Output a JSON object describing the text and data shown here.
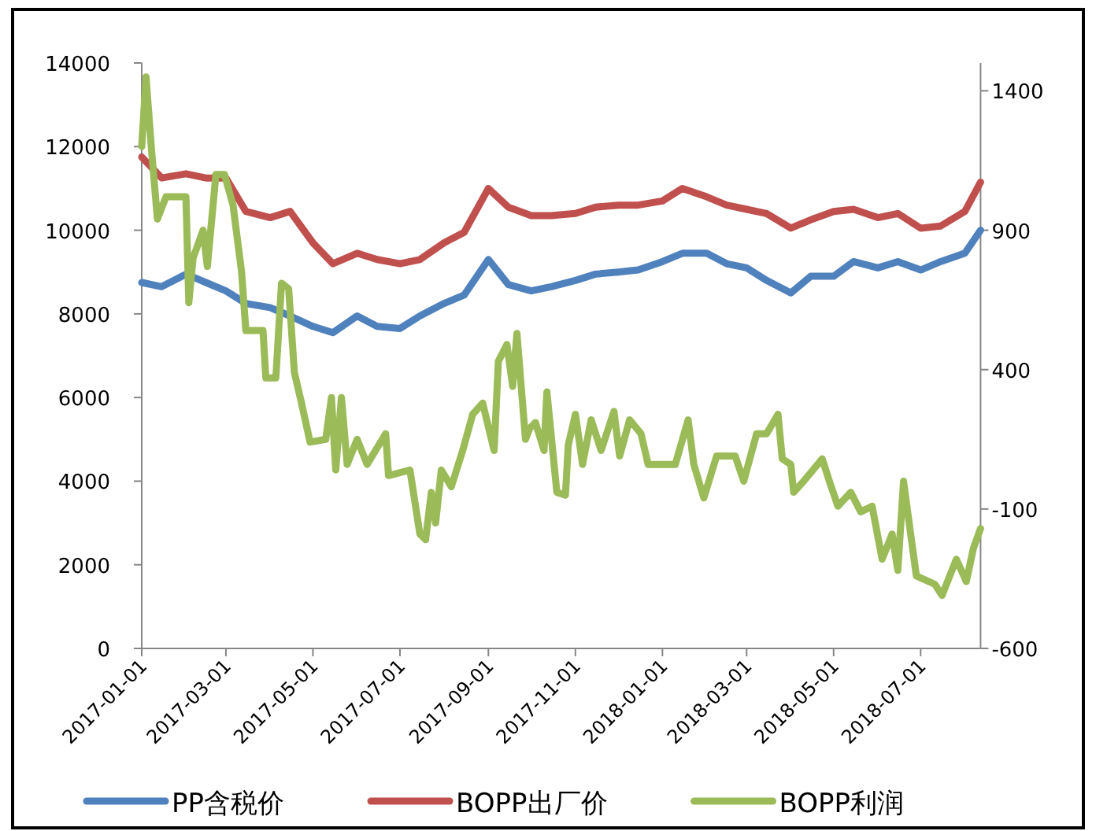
{
  "chart_data": {
    "type": "line",
    "xlim": [
      "2017-01-01",
      "2018-08-12"
    ],
    "xticks": [
      "2017-01-01",
      "2017-03-01",
      "2017-05-01",
      "2017-07-01",
      "2017-09-01",
      "2017-11-01",
      "2018-01-01",
      "2018-03-01",
      "2018-05-01",
      "2018-07-01"
    ],
    "ylim": [
      0,
      14000
    ],
    "yticks": [
      0,
      2000,
      4000,
      6000,
      8000,
      10000,
      12000,
      14000
    ],
    "y2lim": [
      -600,
      1500
    ],
    "y2ticks": [
      -600,
      -100,
      400,
      900,
      1400
    ],
    "grid": false,
    "legend": "bottom",
    "marker": "none",
    "line_style": "solid",
    "series": [
      {
        "name": "PP含税价",
        "color": "#4f81bd",
        "x": [
          "2017-01-01",
          "2017-01-15",
          "2017-02-01",
          "2017-02-15",
          "2017-03-01",
          "2017-03-15",
          "2017-04-01",
          "2017-04-15",
          "2017-05-01",
          "2017-05-15",
          "2017-06-01",
          "2017-06-15",
          "2017-07-01",
          "2017-07-15",
          "2017-08-01",
          "2017-08-15",
          "2017-09-01",
          "2017-09-15",
          "2017-10-01",
          "2017-10-15",
          "2017-11-01",
          "2017-11-15",
          "2017-12-01",
          "2017-12-15",
          "2018-01-01",
          "2018-01-15",
          "2018-02-01",
          "2018-02-15",
          "2018-03-01",
          "2018-03-15",
          "2018-04-01",
          "2018-04-15",
          "2018-05-01",
          "2018-05-15",
          "2018-06-01",
          "2018-06-15",
          "2018-07-01",
          "2018-07-15",
          "2018-08-01",
          "2018-08-12"
        ],
        "values": [
          8750,
          8650,
          8950,
          8750,
          8550,
          8250,
          8150,
          7950,
          7700,
          7550,
          7950,
          7700,
          7650,
          7950,
          8250,
          8450,
          9300,
          8700,
          8550,
          8650,
          8800,
          8950,
          9000,
          9050,
          9250,
          9450,
          9450,
          9200,
          9100,
          8800,
          8500,
          8900,
          8900,
          9250,
          9100,
          9250,
          9050,
          9250,
          9450,
          10000
        ]
      },
      {
        "name": "BOPP出厂价",
        "color": "#c0504d",
        "x": [
          "2017-01-01",
          "2017-01-15",
          "2017-02-01",
          "2017-02-15",
          "2017-03-01",
          "2017-03-15",
          "2017-04-01",
          "2017-04-15",
          "2017-05-01",
          "2017-05-15",
          "2017-06-01",
          "2017-06-15",
          "2017-07-01",
          "2017-07-15",
          "2017-08-01",
          "2017-08-15",
          "2017-09-01",
          "2017-09-15",
          "2017-10-01",
          "2017-10-15",
          "2017-11-01",
          "2017-11-15",
          "2017-12-01",
          "2017-12-15",
          "2018-01-01",
          "2018-01-15",
          "2018-02-01",
          "2018-02-15",
          "2018-03-01",
          "2018-03-15",
          "2018-04-01",
          "2018-04-15",
          "2018-05-01",
          "2018-05-15",
          "2018-06-01",
          "2018-06-15",
          "2018-07-01",
          "2018-07-15",
          "2018-08-01",
          "2018-08-12"
        ],
        "values": [
          11750,
          11250,
          11350,
          11250,
          11250,
          10450,
          10300,
          10450,
          9700,
          9200,
          9450,
          9300,
          9200,
          9300,
          9700,
          9950,
          11000,
          10550,
          10350,
          10350,
          10400,
          10550,
          10600,
          10600,
          10700,
          11000,
          10800,
          10600,
          10500,
          10400,
          10050,
          10250,
          10450,
          10500,
          10300,
          10400,
          10050,
          10100,
          10450,
          11150
        ]
      },
      {
        "name": "BOPP利润",
        "color": "#9bbb59",
        "axis": "y2",
        "x": [
          "2017-01-01",
          "2017-01-04",
          "2017-01-08",
          "2017-01-12",
          "2017-01-18",
          "2017-02-01",
          "2017-02-03",
          "2017-02-06",
          "2017-02-13",
          "2017-02-16",
          "2017-02-22",
          "2017-02-28",
          "2017-03-06",
          "2017-03-12",
          "2017-03-15",
          "2017-03-27",
          "2017-03-29",
          "2017-04-05",
          "2017-04-09",
          "2017-04-14",
          "2017-04-18",
          "2017-04-23",
          "2017-04-29",
          "2017-05-10",
          "2017-05-14",
          "2017-05-17",
          "2017-05-21",
          "2017-05-25",
          "2017-06-01",
          "2017-06-08",
          "2017-06-21",
          "2017-06-23",
          "2017-07-08",
          "2017-07-15",
          "2017-07-19",
          "2017-07-23",
          "2017-07-26",
          "2017-07-30",
          "2017-08-06",
          "2017-08-14",
          "2017-08-21",
          "2017-08-28",
          "2017-09-05",
          "2017-09-08",
          "2017-09-14",
          "2017-09-18",
          "2017-09-21",
          "2017-09-27",
          "2017-09-30",
          "2017-10-04",
          "2017-10-10",
          "2017-10-12",
          "2017-10-19",
          "2017-10-25",
          "2017-10-27",
          "2017-11-01",
          "2017-11-06",
          "2017-11-12",
          "2017-11-19",
          "2017-11-28",
          "2017-12-02",
          "2017-12-09",
          "2017-12-17",
          "2017-12-22",
          "2018-01-10",
          "2018-01-19",
          "2018-01-23",
          "2018-01-30",
          "2018-02-08",
          "2018-02-21",
          "2018-02-27",
          "2018-03-08",
          "2018-03-15",
          "2018-03-23",
          "2018-03-26",
          "2018-04-01",
          "2018-04-03",
          "2018-04-10",
          "2018-04-23",
          "2018-04-28",
          "2018-05-04",
          "2018-05-13",
          "2018-05-20",
          "2018-05-28",
          "2018-06-04",
          "2018-06-11",
          "2018-06-15",
          "2018-06-19",
          "2018-06-24",
          "2018-06-28",
          "2018-07-11",
          "2018-07-16",
          "2018-07-26",
          "2018-08-02",
          "2018-08-07",
          "2018-08-12"
        ],
        "values": [
          1200,
          1450,
          1180,
          940,
          1020,
          1020,
          640,
          800,
          900,
          770,
          1100,
          1100,
          990,
          750,
          540,
          540,
          370,
          370,
          710,
          690,
          390,
          280,
          140,
          150,
          300,
          40,
          300,
          60,
          150,
          60,
          170,
          20,
          40,
          -190,
          -210,
          -40,
          -150,
          40,
          -20,
          110,
          240,
          280,
          110,
          430,
          490,
          340,
          530,
          150,
          190,
          210,
          110,
          320,
          -40,
          -50,
          130,
          240,
          60,
          220,
          110,
          250,
          90,
          220,
          170,
          60,
          60,
          220,
          60,
          -60,
          90,
          90,
          0,
          170,
          170,
          240,
          80,
          60,
          -40,
          0,
          80,
          0,
          -90,
          -40,
          -110,
          -90,
          -280,
          -190,
          -320,
          0,
          -190,
          -340,
          -370,
          -410,
          -280,
          -360,
          -240,
          -170
        ]
      }
    ]
  }
}
